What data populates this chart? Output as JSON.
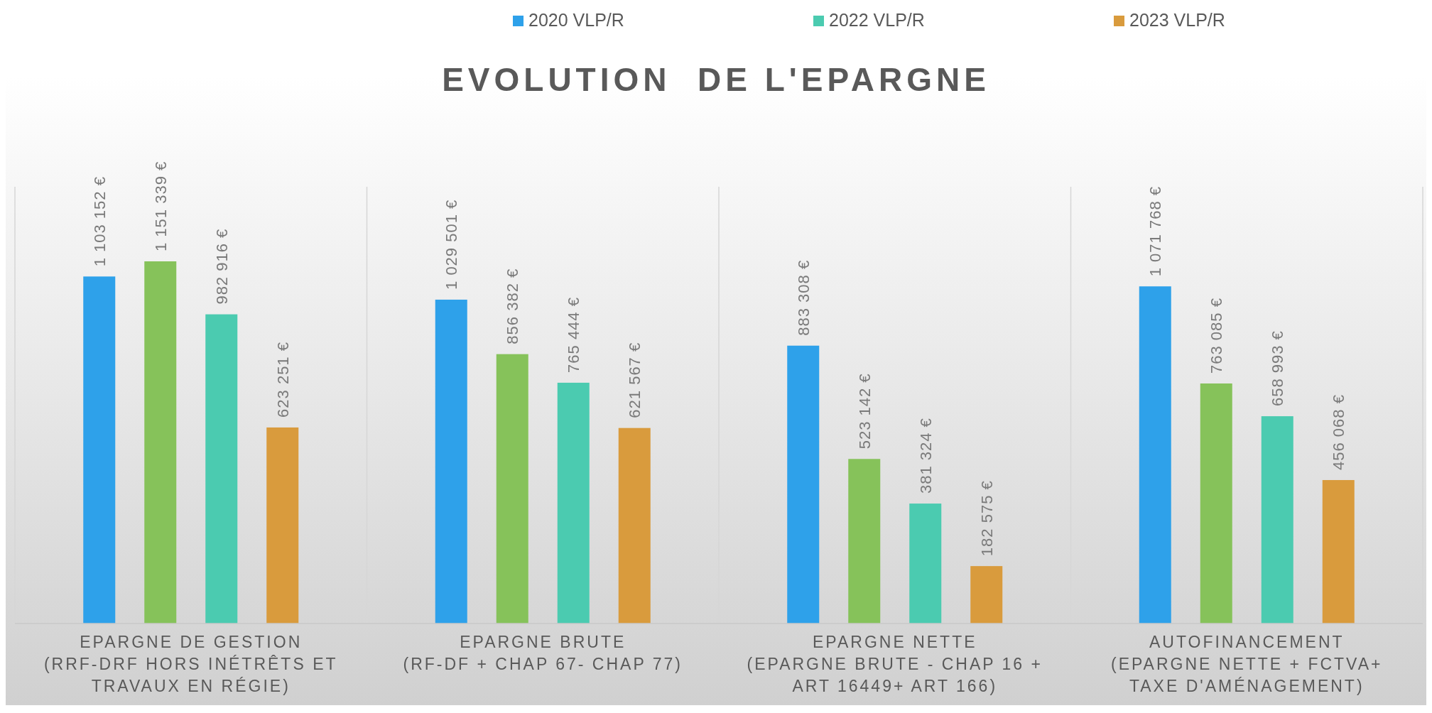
{
  "chart_data": {
    "type": "bar",
    "title": "EVOLUTION  DE L'EPARGNE",
    "categories": [
      "EPARGNE DE GESTION (RRF-DRF HORS INÉTRÊTS ET TRAVAUX EN RÉGIE)",
      "EPARGNE BRUTE (RF-DF + CHAP 67- CHAP 77)",
      "EPARGNE NETTE (EPARGNE BRUTE - CHAP 16 + ART 16449+ ART 166)",
      "AUTOFINANCEMENT (EPARGNE NETTE + FCTVA+ TAXE D'AMÉNAGEMENT)"
    ],
    "series": [
      {
        "name": "2020 VLP/R",
        "color": "#2ea1ea",
        "values": [
          1103152,
          1029501,
          883308,
          1071768
        ],
        "value_labels": [
          "1 103 152 €",
          "1 029 501 €",
          "883 308 €",
          "1 071 768 €"
        ]
      },
      {
        "color": "#86c25a",
        "values": [
          1151339,
          856382,
          523142,
          763085
        ],
        "value_labels": [
          "1 151 339 €",
          "856 382 €",
          "523 142 €",
          "763 085 €"
        ]
      },
      {
        "name": "2022 VLP/R",
        "color": "#4bcbb0",
        "values": [
          982916,
          765444,
          381324,
          658993
        ],
        "value_labels": [
          "982 916 €",
          "765 444 €",
          "381 324 €",
          "658 993 €"
        ]
      },
      {
        "name": "2023 VLP/R",
        "color": "#d99b3d",
        "values": [
          623251,
          621567,
          182575,
          456068
        ],
        "value_labels": [
          "623 251 €",
          "621 567 €",
          "182 575 €",
          "456 068 €"
        ]
      }
    ],
    "legend": "top",
    "grid": "x"
  }
}
